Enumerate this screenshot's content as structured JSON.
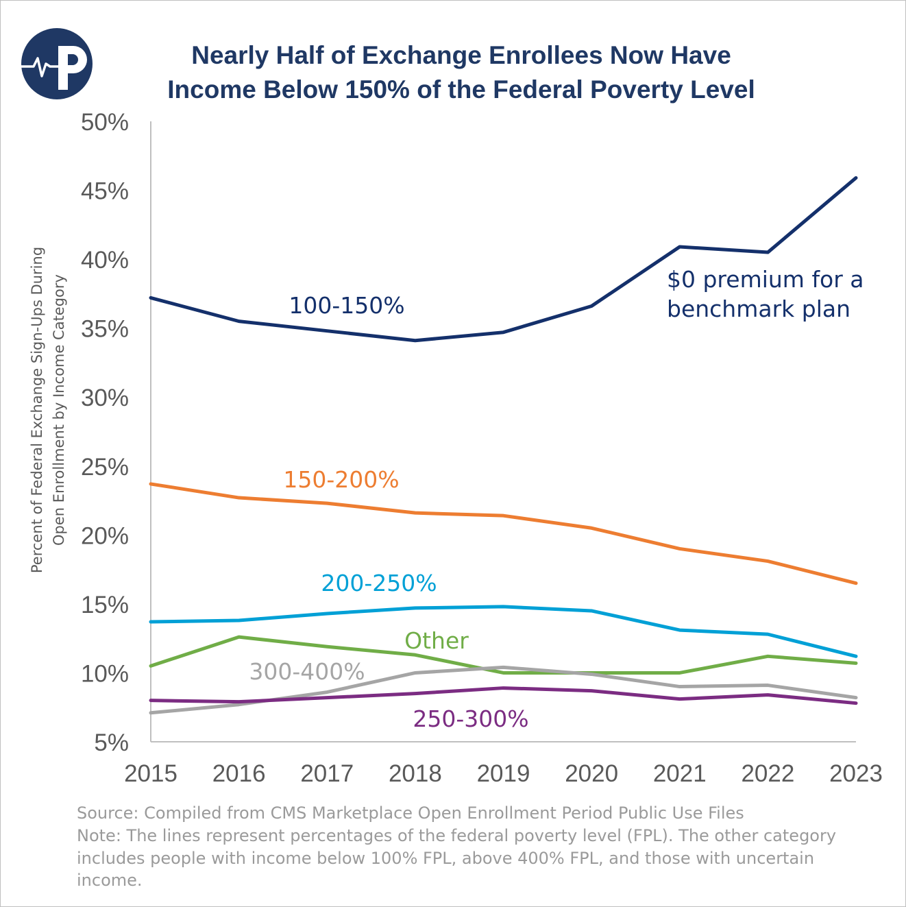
{
  "chart_data": {
    "type": "line",
    "title_lines": [
      "Nearly Half of Exchange Enrollees Now Have",
      "Income Below 150% of the Federal Poverty Level"
    ],
    "title_color": "#1f3864",
    "ylabel_lines": [
      "Percent of Federal Exchange Sign-Ups During",
      "Open Enrollment by Income Category"
    ],
    "xlabel": "",
    "ylim": [
      5,
      50
    ],
    "y_ticks": [
      5,
      10,
      15,
      20,
      25,
      30,
      35,
      40,
      45,
      50
    ],
    "y_tick_labels": [
      "5%",
      "10%",
      "15%",
      "20%",
      "25%",
      "30%",
      "35%",
      "40%",
      "45%",
      "50%"
    ],
    "grid": false,
    "x": [
      "2015",
      "2016",
      "2017",
      "2018",
      "2019",
      "2020",
      "2021",
      "2022",
      "2023"
    ],
    "series": [
      {
        "name": "100-150%",
        "color": "#14306b",
        "values": [
          37.2,
          35.5,
          34.8,
          34.1,
          34.7,
          36.6,
          40.9,
          40.5,
          45.9
        ]
      },
      {
        "name": "150-200%",
        "color": "#ed7d31",
        "values": [
          23.7,
          22.7,
          22.3,
          21.6,
          21.4,
          20.5,
          19.0,
          18.1,
          16.5
        ]
      },
      {
        "name": "200-250%",
        "color": "#00a0d6",
        "values": [
          13.7,
          13.8,
          14.3,
          14.7,
          14.8,
          14.5,
          13.1,
          12.8,
          11.2
        ]
      },
      {
        "name": "Other",
        "color": "#70ad47",
        "values": [
          10.5,
          12.6,
          11.9,
          11.3,
          10.0,
          10.0,
          10.0,
          11.2,
          10.7
        ]
      },
      {
        "name": "300-400%",
        "color": "#a5a5a5",
        "values": [
          7.1,
          7.7,
          8.6,
          10.0,
          10.4,
          9.9,
          9.0,
          9.1,
          8.2
        ]
      },
      {
        "name": "250-300%",
        "color": "#7b2c82",
        "values": [
          8.0,
          7.9,
          8.2,
          8.5,
          8.9,
          8.7,
          8.1,
          8.4,
          7.8
        ]
      }
    ],
    "annotation_lines": [
      "$0 premium for a",
      "benchmark plan"
    ]
  },
  "footnotes": [
    "Source: Compiled from CMS Marketplace Open Enrollment Period Public Use Files",
    "Note: The lines represent percentages of the federal poverty level (FPL). The other category",
    "includes people with income below 100% FPL, above 400% FPL, and those with uncertain",
    "income."
  ],
  "logo": {
    "icon": "heartbeat-p-logo-icon",
    "letter": "P",
    "color": "#1f3864"
  }
}
